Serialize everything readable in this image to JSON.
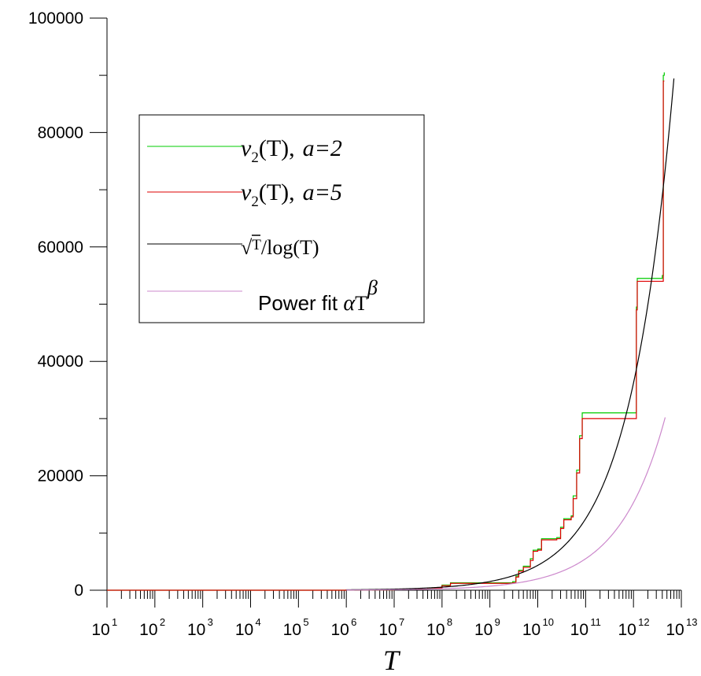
{
  "chart_data": {
    "type": "line",
    "x_scale": "log10",
    "xlim": [
      10,
      10000000000000
    ],
    "ylim": [
      0,
      100000
    ],
    "xlabel": "T",
    "ylabel": "",
    "title": "",
    "grid": false,
    "legend_position": "top-left",
    "x_tick_labels": [
      {
        "base": "10",
        "exp": "1"
      },
      {
        "base": "10",
        "exp": "2"
      },
      {
        "base": "10",
        "exp": "3"
      },
      {
        "base": "10",
        "exp": "4"
      },
      {
        "base": "10",
        "exp": "5"
      },
      {
        "base": "10",
        "exp": "6"
      },
      {
        "base": "10",
        "exp": "7"
      },
      {
        "base": "10",
        "exp": "8"
      },
      {
        "base": "10",
        "exp": "9"
      },
      {
        "base": "10",
        "exp": "10"
      },
      {
        "base": "10",
        "exp": "11"
      },
      {
        "base": "10",
        "exp": "12"
      },
      {
        "base": "10",
        "exp": "13"
      }
    ],
    "y_tick_labels": [
      "0",
      "20000",
      "40000",
      "60000",
      "80000",
      "100000"
    ],
    "y_ticks": [
      0,
      20000,
      40000,
      60000,
      80000,
      100000
    ],
    "series": [
      {
        "name": "ν2(T), a=2",
        "color": "#00cc00",
        "step": true,
        "points": [
          [
            10,
            0
          ],
          [
            100000,
            0
          ],
          [
            1000000,
            50
          ],
          [
            10000000,
            200
          ],
          [
            50000000,
            400
          ],
          [
            100000000,
            900
          ],
          [
            150000000,
            1300
          ],
          [
            3000000000,
            1500
          ],
          [
            3500000000,
            2500
          ],
          [
            4000000000,
            3500
          ],
          [
            5000000000,
            4200
          ],
          [
            7000000000,
            5500
          ],
          [
            8000000000,
            7000
          ],
          [
            10000000000,
            7200
          ],
          [
            12000000000,
            9000
          ],
          [
            25000000000,
            9200
          ],
          [
            30000000000,
            11000
          ],
          [
            35000000000,
            12500
          ],
          [
            50000000000,
            13000
          ],
          [
            55000000000,
            16500
          ],
          [
            65000000000,
            21000
          ],
          [
            75000000000,
            27000
          ],
          [
            85000000000,
            31000
          ],
          [
            1100000000000,
            31000
          ],
          [
            1150000000000,
            49500
          ],
          [
            1200000000000,
            54500
          ],
          [
            4000000000000,
            55000
          ],
          [
            4200000000000,
            90000
          ],
          [
            4400000000000,
            90500
          ]
        ]
      },
      {
        "name": "ν2(T), a=5",
        "color": "#dd0000",
        "step": true,
        "points": [
          [
            10,
            0
          ],
          [
            100000,
            0
          ],
          [
            1000000,
            50
          ],
          [
            10000000,
            200
          ],
          [
            50000000,
            400
          ],
          [
            100000000,
            800
          ],
          [
            150000000,
            1200
          ],
          [
            3000000000,
            1300
          ],
          [
            3500000000,
            2300
          ],
          [
            4000000000,
            3300
          ],
          [
            5000000000,
            4000
          ],
          [
            7000000000,
            5200
          ],
          [
            8000000000,
            6800
          ],
          [
            10000000000,
            7000
          ],
          [
            12000000000,
            8800
          ],
          [
            25000000000,
            9000
          ],
          [
            30000000000,
            10800
          ],
          [
            35000000000,
            12300
          ],
          [
            50000000000,
            12800
          ],
          [
            55000000000,
            16000
          ],
          [
            65000000000,
            20500
          ],
          [
            75000000000,
            26500
          ],
          [
            85000000000,
            30000
          ],
          [
            1100000000000,
            30000
          ],
          [
            1150000000000,
            49000
          ],
          [
            1200000000000,
            54000
          ],
          [
            4000000000000,
            54000
          ],
          [
            4200000000000,
            89000
          ],
          [
            4400000000000,
            89000
          ]
        ]
      },
      {
        "name": "√T/log(T)",
        "color": "#000000",
        "function": "sqrt_over_ln",
        "x_range": [
          1000000,
          7000000000000
        ]
      },
      {
        "name": "Power fit αT^β",
        "color": "#cc88cc",
        "function": "power",
        "alpha": 0.07,
        "beta": 0.445,
        "x_range": [
          1000000,
          4600000000000
        ]
      }
    ],
    "legend": [
      {
        "series": "ν2(T), a=2",
        "nu": "ν",
        "sub": "2",
        "text": "(T),",
        "param": "a=2",
        "color": "#00cc00"
      },
      {
        "series": "ν2(T), a=5",
        "nu": "ν",
        "sub": "2",
        "text": "(T),",
        "param": "a=5",
        "color": "#dd0000"
      },
      {
        "series": "√T/log(T)",
        "radical": "√",
        "radicand": "T",
        "tail": "/log(T)",
        "color": "#000000"
      },
      {
        "series": "Power fit αT^β",
        "prefix": "Power fit ",
        "alpha": "α",
        "base": "T",
        "beta": "β",
        "color": "#cc88cc"
      }
    ]
  }
}
